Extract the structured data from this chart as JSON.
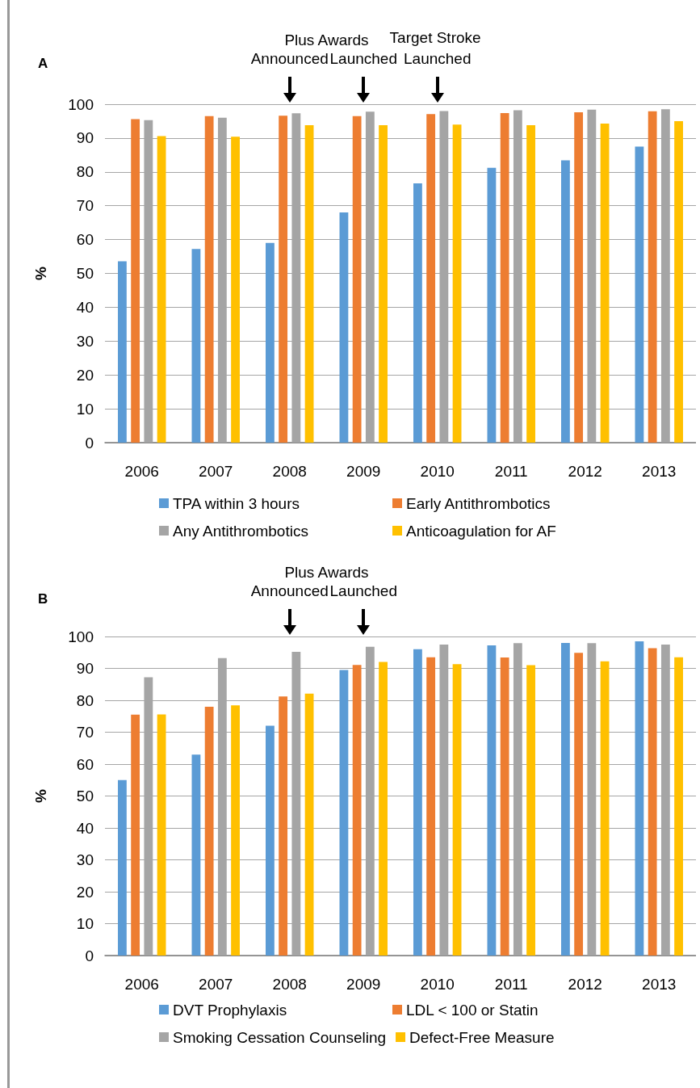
{
  "chart_data": [
    {
      "type": "bar",
      "title": "A",
      "ylabel": "%",
      "categories": [
        "2006",
        "2007",
        "2008",
        "2009",
        "2010",
        "2011",
        "2012",
        "2013"
      ],
      "series": [
        {
          "name": "TPA within 3 hours",
          "color": "#5b9bd5",
          "values": [
            53.6,
            57.2,
            59,
            68,
            76.6,
            81.2,
            83.4,
            87.5
          ]
        },
        {
          "name": "Early Antithrombotics",
          "color": "#ed7d31",
          "values": [
            95.6,
            96.5,
            96.6,
            96.5,
            97.1,
            97.4,
            97.6,
            97.9
          ]
        },
        {
          "name": "Any Antithrombotics",
          "color": "#a5a5a5",
          "values": [
            95.3,
            96,
            97.3,
            97.8,
            98,
            98.2,
            98.4,
            98.5
          ]
        },
        {
          "name": "Anticoagulation for AF",
          "color": "#ffc000",
          "values": [
            90.6,
            90.4,
            93.8,
            93.8,
            94,
            93.8,
            94.3,
            95
          ]
        }
      ],
      "ylim": [
        0,
        100
      ],
      "yticks": [
        0,
        10,
        20,
        30,
        40,
        50,
        60,
        70,
        80,
        90,
        100
      ],
      "grid": "y",
      "legend": "bottom",
      "annotations": [
        "Plus Awards",
        "Announced",
        "Launched",
        "Target Stroke Launched"
      ]
    },
    {
      "type": "bar",
      "title": "B",
      "ylabel": "%",
      "categories": [
        "2006",
        "2007",
        "2008",
        "2009",
        "2010",
        "2011",
        "2012",
        "2013"
      ],
      "series": [
        {
          "name": "DVT Prophylaxis",
          "color": "#5b9bd5",
          "values": [
            55,
            63,
            72,
            89.5,
            96,
            97.2,
            98,
            98.5
          ]
        },
        {
          "name": "LDL < 100 or Statin",
          "color": "#ed7d31",
          "values": [
            75.5,
            78,
            81.2,
            91.1,
            93.5,
            93.4,
            94.9,
            96.3
          ]
        },
        {
          "name": "Smoking Cessation Counseling",
          "color": "#a5a5a5",
          "values": [
            87.2,
            93.2,
            95.2,
            96.8,
            97.5,
            97.9,
            97.9,
            97.5
          ]
        },
        {
          "name": "Defect-Free Measure",
          "color": "#ffc000",
          "values": [
            75.6,
            78.4,
            82.1,
            92,
            91.3,
            91,
            92.2,
            93.5
          ]
        }
      ],
      "ylim": [
        0,
        100
      ],
      "yticks": [
        0,
        10,
        20,
        30,
        40,
        50,
        60,
        70,
        80,
        90,
        100
      ],
      "grid": "y",
      "legend": "bottom",
      "annotations": [
        "Plus Awards",
        "Announced",
        "Launched"
      ]
    }
  ]
}
